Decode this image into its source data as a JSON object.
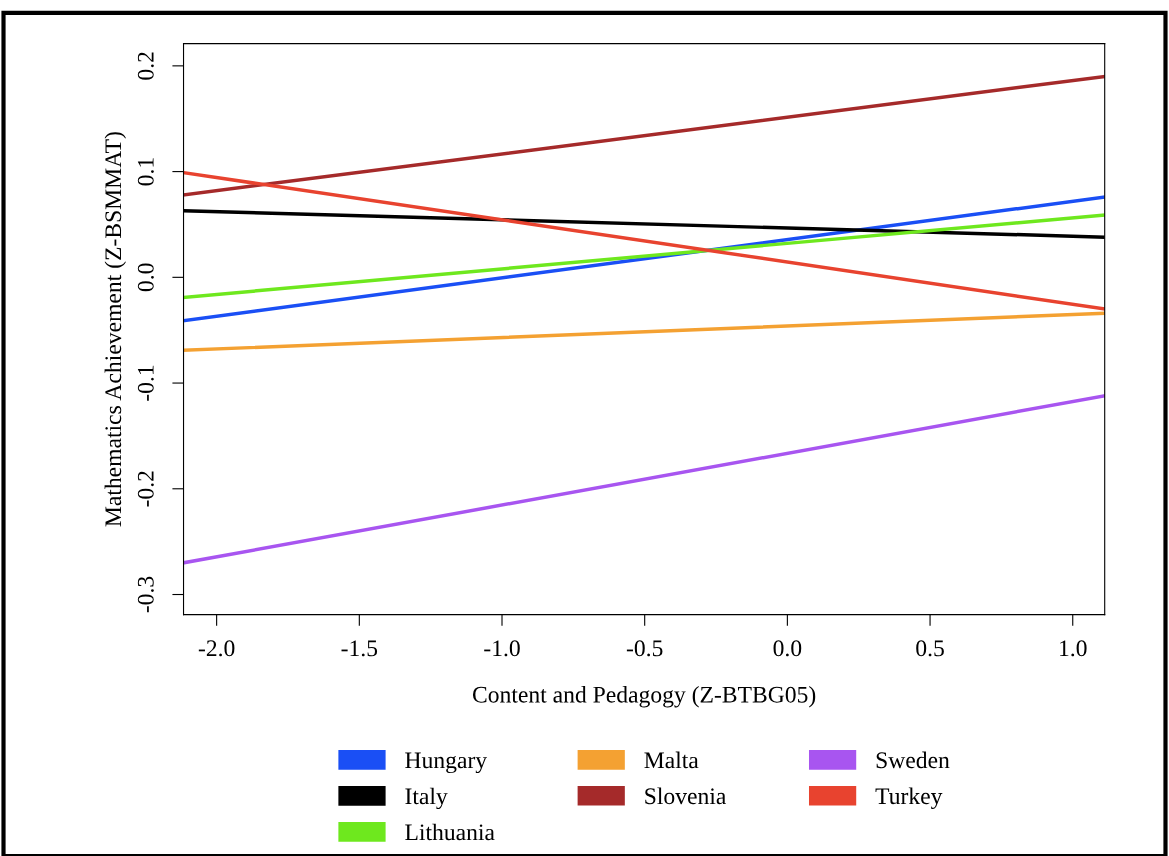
{
  "chart_data": {
    "type": "line",
    "xlabel": "Content and Pedagogy (Z-BTBG05)",
    "ylabel": "Mathematics Achievement (Z-BSMMAT)",
    "x": [
      -2.116,
      1.112
    ],
    "series": [
      {
        "name": "Hungary",
        "color": "#1a4ff5",
        "values": [
          -0.041,
          0.076
        ]
      },
      {
        "name": "Italy",
        "color": "#000000",
        "values": [
          0.063,
          0.038
        ]
      },
      {
        "name": "Lithuania",
        "color": "#6ee81e",
        "values": [
          -0.019,
          0.059
        ]
      },
      {
        "name": "Malta",
        "color": "#f4a132",
        "values": [
          -0.069,
          -0.034
        ]
      },
      {
        "name": "Slovenia",
        "color": "#a52a2a",
        "values": [
          0.078,
          0.19
        ]
      },
      {
        "name": "Sweden",
        "color": "#a855f0",
        "values": [
          -0.27,
          -0.112
        ]
      },
      {
        "name": "Turkey",
        "color": "#e8432f",
        "values": [
          0.099,
          -0.03
        ]
      }
    ],
    "xlim": [
      -2.116,
      1.112
    ],
    "ylim": [
      -0.319,
      0.221
    ],
    "xticks": [
      {
        "value": -2.0,
        "label": "-2.0"
      },
      {
        "value": -1.5,
        "label": "-1.5"
      },
      {
        "value": -1.0,
        "label": "-1.0"
      },
      {
        "value": -0.5,
        "label": "-0.5"
      },
      {
        "value": 0.0,
        "label": "0.0"
      },
      {
        "value": 0.5,
        "label": "0.5"
      },
      {
        "value": 1.0,
        "label": "1.0"
      }
    ],
    "yticks": [
      {
        "value": -0.3,
        "label": "-0.3"
      },
      {
        "value": -0.2,
        "label": "-0.2"
      },
      {
        "value": -0.1,
        "label": "-0.1"
      },
      {
        "value": 0.0,
        "label": "0.0"
      },
      {
        "value": 0.1,
        "label": "0.1"
      },
      {
        "value": 0.2,
        "label": "0.2"
      }
    ],
    "legend": "bottom",
    "grid": false,
    "marker": "none",
    "line_style": "solid"
  }
}
